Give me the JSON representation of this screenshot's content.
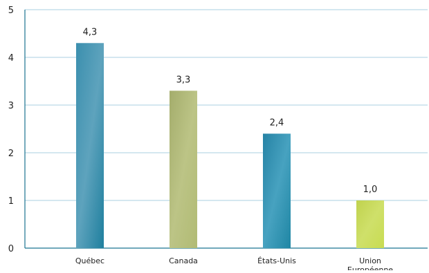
{
  "chart_data": {
    "type": "bar",
    "categories": [
      "Québec",
      "Canada",
      "États-Unis",
      "Union Européenne"
    ],
    "category_lines": [
      [
        "Québec"
      ],
      [
        "Canada"
      ],
      [
        "États-Unis"
      ],
      [
        "Union",
        "Européenne"
      ]
    ],
    "values": [
      4.3,
      3.3,
      2.4,
      1.0
    ],
    "value_labels": [
      "4,3",
      "3,3",
      "2,4",
      "1,0"
    ],
    "yticks": [
      "0",
      "1",
      "2",
      "3",
      "4",
      "5"
    ],
    "ylim": [
      0,
      5
    ],
    "grid": true,
    "title": "",
    "xlabel": "",
    "ylabel": "",
    "colors": {
      "grid": "#a9cfe0",
      "axis": "#1a7390",
      "bars": [
        {
          "top": "#3b8fae",
          "mid": "#5ea3bd",
          "bottom": "#1f7f9e"
        },
        {
          "top": "#a4ad6c",
          "mid": "#bcc486",
          "bottom": "#b1bb74"
        },
        {
          "top": "#2683a5",
          "mid": "#47a2c0",
          "bottom": "#1f86a4"
        },
        {
          "top": "#c0d24e",
          "mid": "#cfe06a",
          "bottom": "#c8dc52"
        }
      ]
    }
  }
}
